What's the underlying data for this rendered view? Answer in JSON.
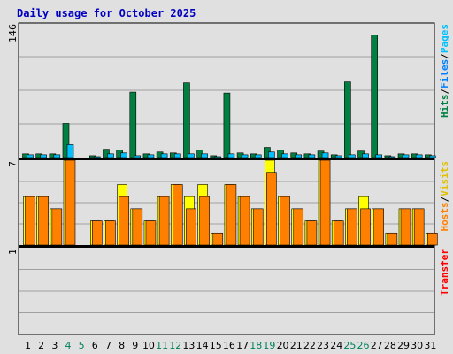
{
  "chart_data": {
    "type": "bar",
    "title": "Daily usage for October 2025",
    "categories": [
      "1",
      "2",
      "3",
      "4",
      "5",
      "6",
      "7",
      "8",
      "9",
      "10",
      "11",
      "12",
      "13",
      "14",
      "15",
      "16",
      "17",
      "18",
      "19",
      "20",
      "21",
      "22",
      "23",
      "24",
      "25",
      "26",
      "27",
      "28",
      "29",
      "30",
      "31"
    ],
    "weekend_days": [
      "4",
      "5",
      "11",
      "12",
      "18",
      "19",
      "25",
      "26"
    ],
    "panels": [
      {
        "id": "traffic",
        "ymax": 146,
        "ymax_label": "146",
        "side_label_parts": [
          "Hits",
          "/",
          "Files",
          "/",
          "Pages"
        ],
        "series": [
          {
            "name": "Hits",
            "color": "#008040",
            "values": [
              4,
              4,
              4,
              37,
              0,
              2,
              9,
              8,
              71,
              4,
              6,
              5,
              81,
              8,
              2,
              70,
              5,
              4,
              11,
              8,
              5,
              4,
              7,
              3,
              82,
              7,
              133,
              2,
              4,
              4,
              3
            ]
          },
          {
            "name": "Files",
            "color": "#00c0ff",
            "values": [
              3,
              3,
              3,
              14,
              0,
              1,
              4,
              5,
              2,
              3,
              4,
              4,
              4,
              4,
              1,
              4,
              3,
              3,
              6,
              4,
              3,
              3,
              5,
              2,
              3,
              4,
              3,
              1,
              3,
              3,
              2
            ]
          },
          {
            "name": "Pages",
            "color": "#00c0ff",
            "values": [
              0,
              0,
              0,
              0,
              0,
              0,
              0,
              0,
              0,
              0,
              0,
              0,
              0,
              0,
              0,
              0,
              0,
              0,
              0,
              0,
              0,
              0,
              0,
              0,
              0,
              0,
              0,
              0,
              0,
              0,
              0
            ]
          }
        ]
      },
      {
        "id": "visitors",
        "ymax": 7,
        "ymax_label": "7",
        "side_label_parts": [
          "Hosts",
          "/",
          "Visits"
        ],
        "series": [
          {
            "name": "Visits",
            "color": "#ffff00",
            "values": [
              4,
              4,
              3,
              7,
              0,
              2,
              2,
              5,
              3,
              2,
              4,
              5,
              4,
              5,
              1,
              5,
              4,
              3,
              7,
              4,
              3,
              2,
              7,
              2,
              3,
              4,
              3,
              1,
              3,
              3,
              1
            ]
          },
          {
            "name": "Hosts",
            "color": "#ff8000",
            "values": [
              4,
              4,
              3,
              7,
              0,
              2,
              2,
              4,
              3,
              2,
              4,
              5,
              3,
              4,
              1,
              5,
              4,
              3,
              6,
              4,
              3,
              2,
              7,
              2,
              3,
              3,
              3,
              1,
              3,
              3,
              1
            ]
          }
        ]
      },
      {
        "id": "transfer",
        "ymax": 1,
        "ymax_label": "1",
        "side_label_parts": [
          "Transfer"
        ],
        "series": [
          {
            "name": "Transfer",
            "color": "#ff0000",
            "values": [
              0,
              0,
              0,
              0,
              0,
              0,
              0,
              0,
              0,
              0,
              0,
              0,
              0,
              0,
              0,
              0,
              0,
              0,
              0,
              0,
              0,
              0,
              0,
              0,
              0,
              0,
              0,
              0,
              0,
              0,
              0
            ]
          }
        ]
      }
    ],
    "colors": {
      "background": "#e0e0e0",
      "title": "#0000c0",
      "grid": "#a0a0a0",
      "weekend": "#00805c",
      "weekday": "#000000",
      "hits_label": "#008040",
      "files_label": "#0080ff",
      "pages_label": "#00c0ff",
      "hosts_label": "#ff8000",
      "visits_label": "#e0c000",
      "transfer_label": "#ff0000",
      "separator": "#000000"
    }
  }
}
